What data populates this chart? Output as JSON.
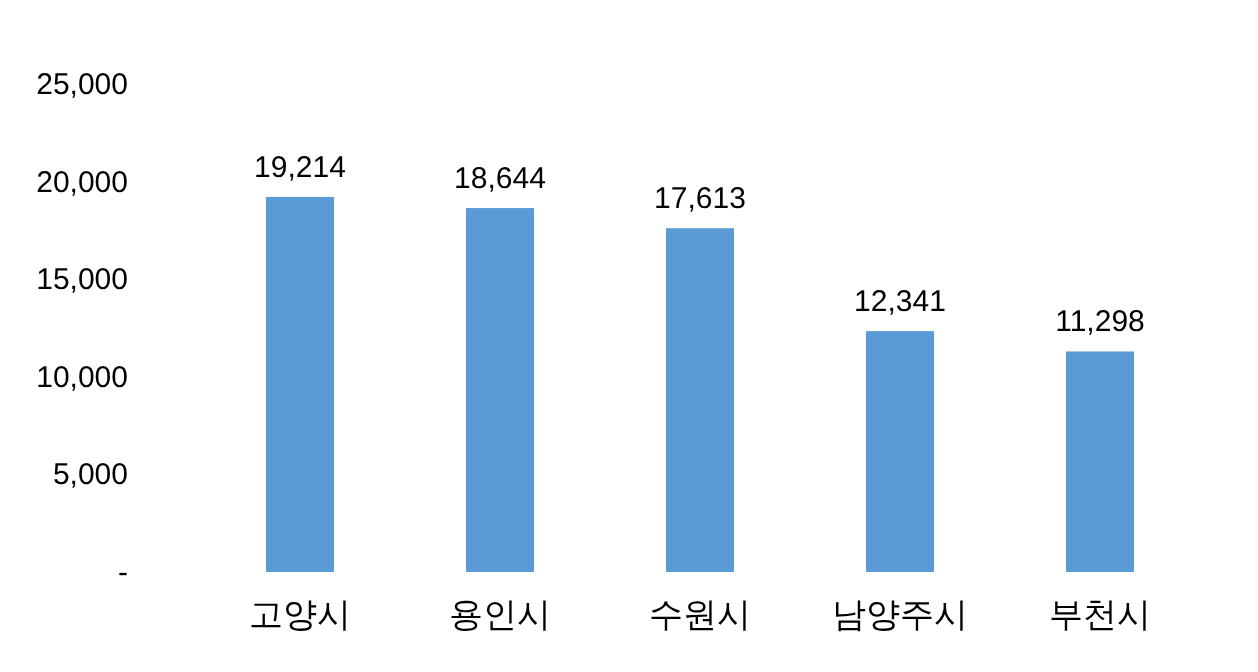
{
  "chart_data": {
    "type": "bar",
    "categories": [
      "고양시",
      "용인시",
      "수원시",
      "남양주시",
      "부천시"
    ],
    "values": [
      19214,
      18644,
      17613,
      12341,
      11298
    ],
    "value_labels": [
      "19,214",
      "18,644",
      "17,613",
      "12,341",
      "11,298"
    ],
    "color": "#5b9bd5",
    "ylim": [
      0,
      25000
    ],
    "yticks": [
      {
        "value": 0,
        "label": "-"
      },
      {
        "value": 5000,
        "label": "5,000"
      },
      {
        "value": 10000,
        "label": "10,000"
      },
      {
        "value": 15000,
        "label": "15,000"
      },
      {
        "value": 20000,
        "label": "20,000"
      },
      {
        "value": 25000,
        "label": "25,000"
      }
    ],
    "grid": false
  }
}
